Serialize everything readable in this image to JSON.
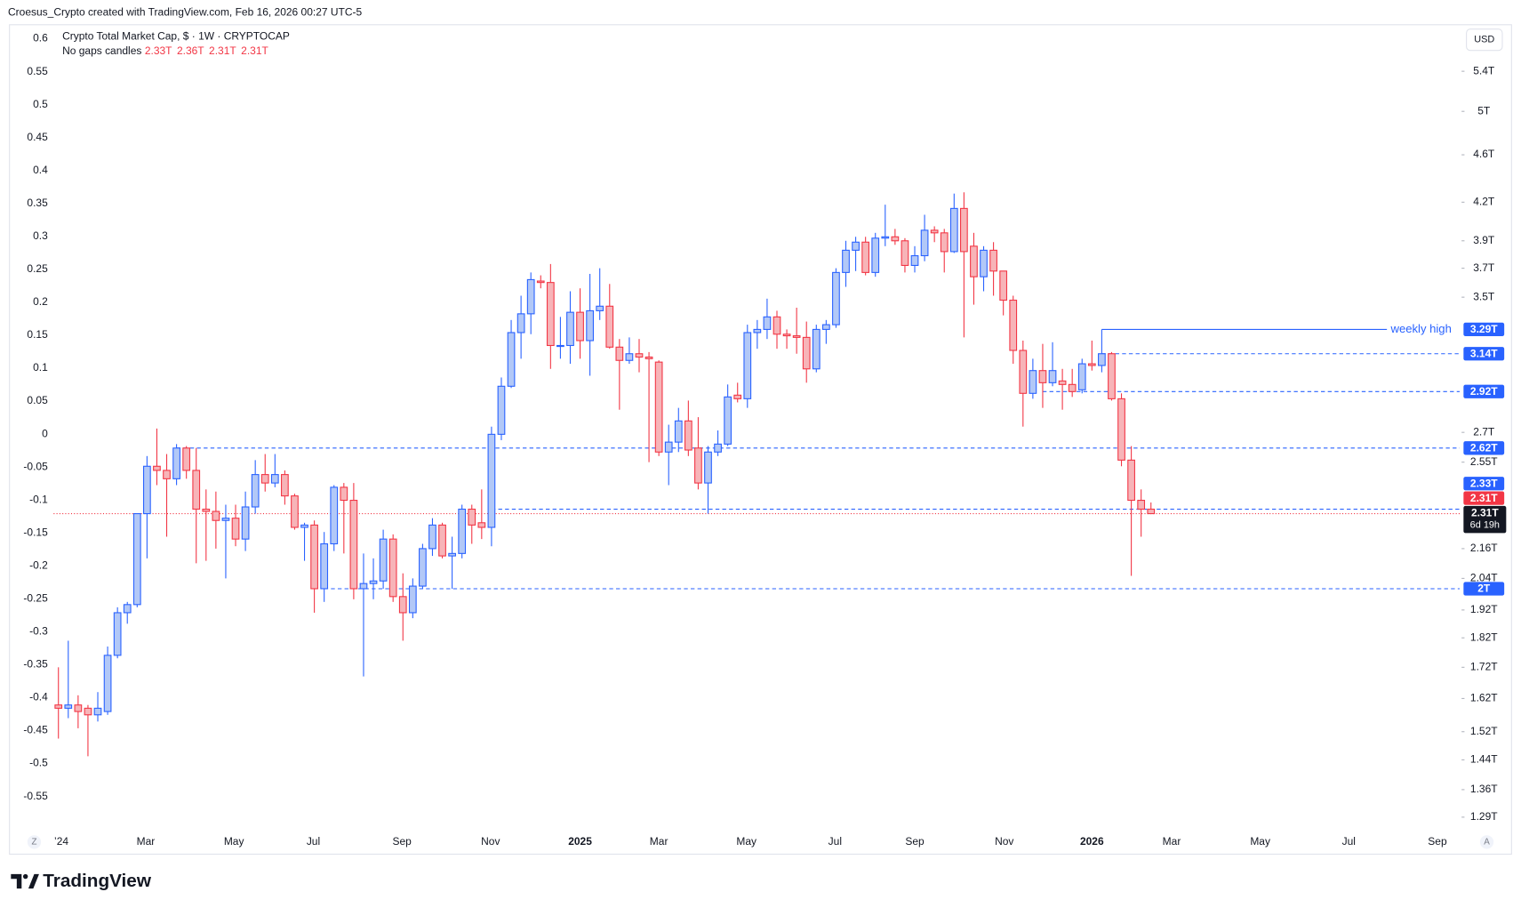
{
  "header": "Croesus_Crypto created with TradingView.com, Feb 16, 2026 00:27 UTC-5",
  "footer": {
    "brand": "TradingView"
  },
  "chart_data": {
    "type": "candlestick",
    "title": "Crypto Total Market Cap, $ · 1W · CRYPTOCAP",
    "subtitle": "No gaps candles",
    "ohlc_labels": [
      "2.33T",
      "2.36T",
      "2.31T",
      "2.31T"
    ],
    "currency": "USD",
    "scale_buttons": [
      "Z",
      "A"
    ],
    "log_scale": true,
    "up_color": "#2962ff",
    "up_fill": "#b2c8f7",
    "down_color": "#f23645",
    "down_fill": "#f7b4b8",
    "open": [
      1.6,
      1.59,
      1.6,
      1.59,
      1.57,
      1.58,
      1.76,
      1.91,
      1.94,
      2.31,
      2.53,
      2.51,
      2.47,
      2.62,
      2.51,
      2.33,
      2.32,
      2.28,
      2.29,
      2.2,
      2.34,
      2.49,
      2.45,
      2.49,
      2.39,
      2.25,
      2.26,
      2.0,
      2.18,
      2.43,
      2.37,
      2.0,
      2.02,
      2.03,
      2.2,
      1.97,
      1.91,
      2.01,
      2.16,
      2.26,
      2.13,
      2.14,
      2.33,
      2.27,
      2.25,
      2.69,
      2.95,
      3.27,
      3.39,
      3.61,
      3.6,
      3.19,
      3.19,
      3.4,
      3.22,
      3.41,
      3.44,
      3.18,
      3.1,
      3.14,
      3.12,
      3.09,
      2.6,
      2.65,
      2.76,
      2.62,
      2.45,
      2.6,
      2.64,
      2.9,
      2.88,
      3.27,
      3.29,
      3.37,
      3.26,
      3.25,
      3.24,
      3.05,
      3.29,
      3.32,
      3.67,
      3.83,
      3.89,
      3.67,
      3.92,
      3.93,
      3.9,
      3.72,
      3.79,
      3.98,
      3.96,
      3.82,
      4.15,
      3.86,
      3.64,
      3.83,
      3.68,
      3.48,
      3.16,
      2.91,
      3.04,
      2.97,
      2.98,
      2.96,
      2.93,
      3.08,
      3.07,
      3.14,
      2.88,
      2.56,
      2.37,
      2.33
    ],
    "high": [
      1.72,
      1.81,
      1.63,
      1.6,
      1.64,
      1.79,
      1.93,
      1.95,
      2.31,
      2.58,
      2.72,
      2.59,
      2.64,
      2.63,
      2.62,
      2.42,
      2.41,
      2.35,
      2.35,
      2.41,
      2.56,
      2.59,
      2.59,
      2.51,
      2.4,
      2.27,
      2.28,
      2.23,
      2.44,
      2.45,
      2.45,
      2.14,
      2.12,
      2.24,
      2.22,
      2.06,
      2.04,
      2.18,
      2.29,
      2.27,
      2.21,
      2.35,
      2.35,
      2.42,
      2.73,
      3.0,
      3.35,
      3.51,
      3.67,
      3.65,
      3.73,
      3.37,
      3.54,
      3.56,
      3.66,
      3.7,
      3.59,
      3.23,
      3.24,
      3.23,
      3.15,
      3.1,
      2.74,
      2.83,
      2.87,
      2.78,
      2.63,
      2.71,
      2.96,
      2.97,
      3.32,
      3.35,
      3.49,
      3.41,
      3.29,
      3.43,
      3.34,
      3.32,
      3.35,
      3.7,
      3.9,
      3.93,
      3.93,
      3.96,
      4.18,
      3.99,
      3.92,
      3.86,
      4.1,
      4.01,
      3.99,
      4.27,
      4.28,
      3.96,
      3.86,
      3.89,
      3.68,
      3.51,
      3.22,
      3.11,
      3.2,
      3.21,
      3.05,
      3.05,
      3.11,
      3.22,
      3.29,
      3.15,
      2.91,
      2.63,
      2.42,
      2.36
    ],
    "low": [
      1.5,
      1.56,
      1.53,
      1.45,
      1.55,
      1.57,
      1.75,
      1.87,
      1.93,
      2.12,
      2.44,
      2.21,
      2.44,
      2.47,
      2.1,
      2.11,
      2.16,
      2.04,
      2.17,
      2.15,
      2.31,
      2.41,
      2.43,
      2.35,
      2.24,
      2.11,
      1.91,
      1.95,
      2.15,
      2.14,
      1.96,
      1.69,
      1.96,
      2.0,
      1.95,
      1.81,
      1.89,
      2.0,
      2.13,
      2.12,
      2.0,
      2.12,
      2.18,
      2.2,
      2.17,
      2.66,
      2.94,
      3.11,
      3.26,
      3.56,
      3.05,
      3.11,
      3.08,
      3.11,
      3.01,
      3.35,
      3.17,
      2.82,
      3.08,
      3.03,
      2.55,
      2.58,
      2.44,
      2.6,
      2.58,
      2.42,
      2.31,
      2.58,
      2.63,
      2.86,
      2.83,
      3.17,
      3.23,
      3.17,
      3.17,
      3.14,
      2.97,
      3.03,
      3.2,
      3.3,
      3.57,
      3.68,
      3.65,
      3.64,
      3.86,
      3.87,
      3.67,
      3.67,
      3.75,
      3.89,
      3.67,
      3.81,
      3.24,
      3.45,
      3.54,
      3.51,
      3.38,
      3.08,
      2.73,
      2.88,
      2.83,
      2.95,
      2.82,
      2.89,
      2.91,
      3.04,
      3.03,
      2.87,
      2.53,
      2.05,
      2.21,
      2.31
    ],
    "close": [
      1.59,
      1.6,
      1.58,
      1.57,
      1.59,
      1.76,
      1.91,
      1.94,
      2.31,
      2.53,
      2.51,
      2.47,
      2.62,
      2.51,
      2.33,
      2.32,
      2.28,
      2.29,
      2.2,
      2.34,
      2.49,
      2.45,
      2.49,
      2.39,
      2.25,
      2.26,
      2.0,
      2.18,
      2.43,
      2.37,
      2.0,
      2.02,
      2.03,
      2.2,
      1.97,
      1.91,
      2.01,
      2.16,
      2.26,
      2.13,
      2.14,
      2.33,
      2.26,
      2.25,
      2.69,
      2.95,
      3.27,
      3.39,
      3.62,
      3.6,
      3.19,
      3.19,
      3.4,
      3.22,
      3.41,
      3.44,
      3.18,
      3.1,
      3.14,
      3.12,
      3.11,
      2.6,
      2.65,
      2.76,
      2.61,
      2.45,
      2.6,
      2.64,
      2.89,
      2.88,
      3.27,
      3.29,
      3.37,
      3.26,
      3.25,
      3.24,
      3.05,
      3.29,
      3.32,
      3.67,
      3.83,
      3.89,
      3.67,
      3.92,
      3.93,
      3.9,
      3.72,
      3.79,
      3.98,
      3.96,
      3.82,
      4.15,
      3.82,
      3.64,
      3.83,
      3.68,
      3.48,
      3.16,
      2.91,
      3.04,
      2.97,
      3.04,
      2.96,
      2.92,
      3.08,
      3.07,
      3.14,
      2.88,
      2.56,
      2.37,
      2.33,
      2.31
    ],
    "xlim": [
      -0.49,
      142.36
    ],
    "xticks": [
      {
        "value": 0.3,
        "label": "’24"
      },
      {
        "value": 8.87,
        "label": "Mar"
      },
      {
        "value": 17.83,
        "label": "May"
      },
      {
        "value": 25.9,
        "label": "Jul"
      },
      {
        "value": 34.9,
        "label": "Sep"
      },
      {
        "value": 43.9,
        "label": "Nov"
      },
      {
        "value": 53.0,
        "label": "2025"
      },
      {
        "value": 61.0,
        "label": "Mar"
      },
      {
        "value": 69.9,
        "label": "May"
      },
      {
        "value": 78.9,
        "label": "Jul"
      },
      {
        "value": 87.0,
        "label": "Sep"
      },
      {
        "value": 96.1,
        "label": "Nov"
      },
      {
        "value": 105.0,
        "label": "2026"
      },
      {
        "value": 113.1,
        "label": "Mar"
      },
      {
        "value": 122.1,
        "label": "May"
      },
      {
        "value": 131.1,
        "label": "Jul"
      },
      {
        "value": 140.1,
        "label": "Sep"
      }
    ],
    "ylim": [
      1.26,
      5.91
    ],
    "yticks": [
      {
        "value": 5.4,
        "label": "5.4T"
      },
      {
        "value": 5,
        "label": "5T"
      },
      {
        "value": 4.6,
        "label": "4.6T"
      },
      {
        "value": 4.2,
        "label": "4.2T"
      },
      {
        "value": 3.9,
        "label": "3.9T"
      },
      {
        "value": 3.7,
        "label": "3.7T"
      },
      {
        "value": 3.5,
        "label": "3.5T"
      },
      {
        "value": 2.7,
        "label": "2.7T"
      },
      {
        "value": 2.55,
        "label": "2.55T"
      },
      {
        "value": 2.16,
        "label": "2.16T"
      },
      {
        "value": 2.04,
        "label": "2.04T"
      },
      {
        "value": 1.92,
        "label": "1.92T"
      },
      {
        "value": 1.82,
        "label": "1.82T"
      },
      {
        "value": 1.72,
        "label": "1.72T"
      },
      {
        "value": 1.62,
        "label": "1.62T"
      },
      {
        "value": 1.52,
        "label": "1.52T"
      },
      {
        "value": 1.44,
        "label": "1.44T"
      },
      {
        "value": 1.36,
        "label": "1.36T"
      },
      {
        "value": 1.29,
        "label": "1.29T"
      }
    ],
    "y2lim": [
      -0.6,
      0.622
    ],
    "y2ticks": [
      0.6,
      0.55,
      0.5,
      0.45,
      0.4,
      0.35,
      0.3,
      0.25,
      0.2,
      0.15,
      0.1,
      0.05,
      0,
      -0.05,
      -0.1,
      -0.15,
      -0.2,
      -0.25,
      -0.3,
      -0.35,
      -0.4,
      -0.45,
      -0.5,
      -0.55
    ],
    "last_price_label": {
      "label": "2.31T",
      "countdown": "6d 19h"
    },
    "levels": [
      {
        "value": 3.29,
        "label": "3.29T",
        "line": "solid",
        "start": 106,
        "annotation": "weekly high",
        "color": "#2962ff"
      },
      {
        "value": 3.14,
        "label": "3.14T",
        "line": "dashed",
        "start": 106,
        "color": "#2962ff"
      },
      {
        "value": 2.92,
        "label": "2.92T",
        "line": "dashed",
        "start": 100,
        "color": "#2962ff"
      },
      {
        "value": 2.62,
        "label": "2.62T",
        "line": "dashed",
        "start": 12,
        "color": "#2962ff"
      },
      {
        "value": 2.33,
        "label": "2.33T",
        "line": "dashed",
        "start": 44,
        "color": "#2962ff"
      },
      {
        "value": 2.31,
        "label": "2.31T",
        "color": "#f23645"
      },
      {
        "value": 2.0,
        "label": "2T",
        "line": "dashed",
        "start": 27,
        "color": "#2962ff"
      }
    ]
  }
}
